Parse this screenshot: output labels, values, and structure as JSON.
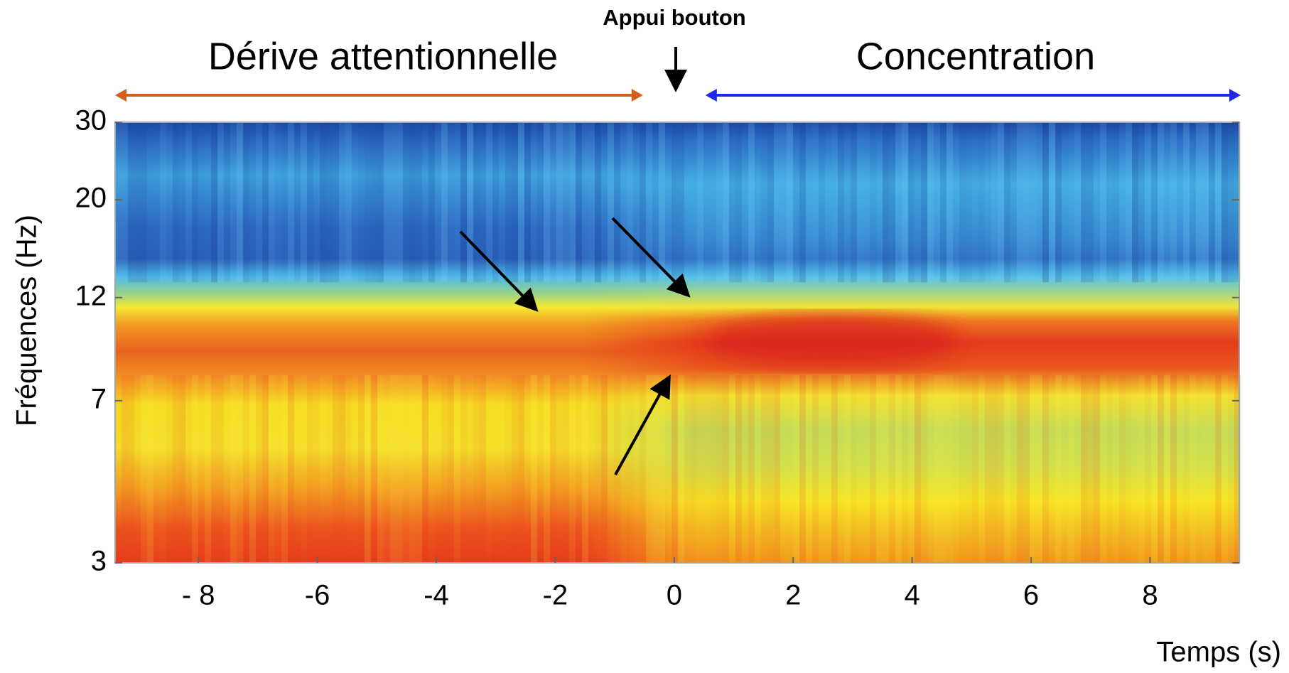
{
  "chart_data": {
    "type": "heatmap",
    "annotations": {
      "event": "Appui bouton",
      "left_phase": "Dérive attentionnelle",
      "right_phase": "Concentration"
    },
    "x_label": "Temps (s)",
    "y_label": "Fréquences (Hz)",
    "xlim": [
      -9.4,
      9.5
    ],
    "xticks": [
      {
        "value": -8,
        "label": "- 8"
      },
      -6,
      -4,
      -2,
      0,
      2,
      4,
      6,
      8
    ],
    "ylim": [
      3,
      30
    ],
    "yticks": [
      3,
      7,
      12,
      20,
      30
    ],
    "y_log": true,
    "left_phase_color": "#d2601a",
    "right_phase_color": "#1a2ae6"
  }
}
